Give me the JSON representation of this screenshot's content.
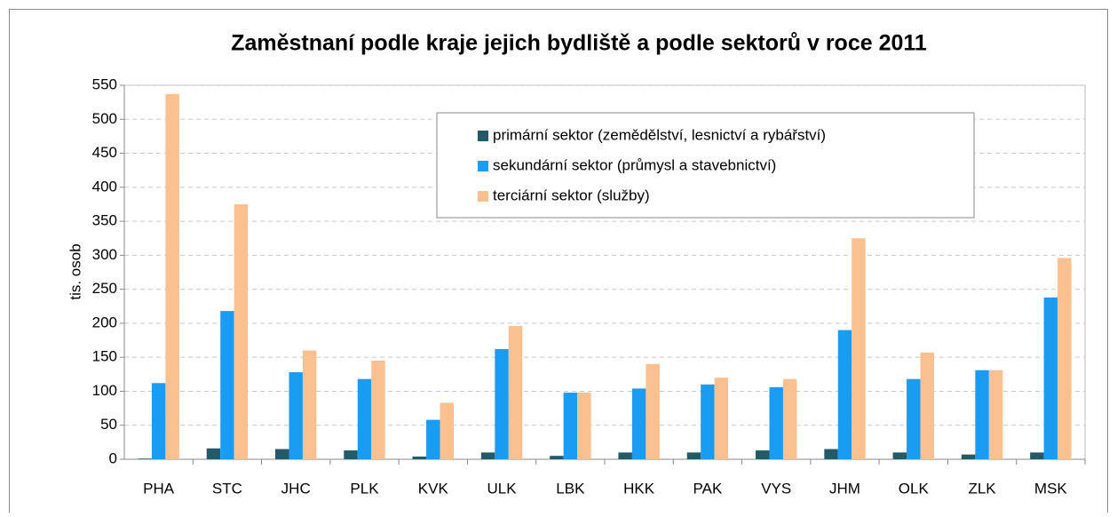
{
  "chart_data": {
    "type": "bar",
    "title": "Zaměstnaní podle kraje jejich bydliště a podle sektorů v roce 2011",
    "y_label": "tis. osob",
    "categories": [
      "PHA",
      "STC",
      "JHC",
      "PLK",
      "KVK",
      "ULK",
      "LBK",
      "HKK",
      "PAK",
      "VYS",
      "JHM",
      "OLK",
      "ZLK",
      "MSK"
    ],
    "series": [
      {
        "name": "primární sektor (zemědělství, lesnictví a rybářství)",
        "color": "#245a68",
        "values": [
          1,
          16,
          15,
          13,
          4,
          10,
          5,
          10,
          10,
          13,
          15,
          10,
          7,
          10
        ]
      },
      {
        "name": "sekundární sektor (průmysl a stavebnictví)",
        "color": "#1a9cf2",
        "values": [
          112,
          218,
          128,
          118,
          58,
          162,
          98,
          104,
          110,
          106,
          190,
          118,
          131,
          238
        ]
      },
      {
        "name": "terciární sektor (služby)",
        "color": "#fac090",
        "values": [
          537,
          375,
          160,
          145,
          83,
          196,
          98,
          140,
          120,
          118,
          325,
          157,
          131,
          296
        ]
      }
    ],
    "ylim": [
      0,
      550
    ],
    "yticks": [
      0,
      50,
      100,
      150,
      200,
      250,
      300,
      350,
      400,
      450,
      500,
      550
    ],
    "grid": true,
    "legend": "top-right"
  }
}
